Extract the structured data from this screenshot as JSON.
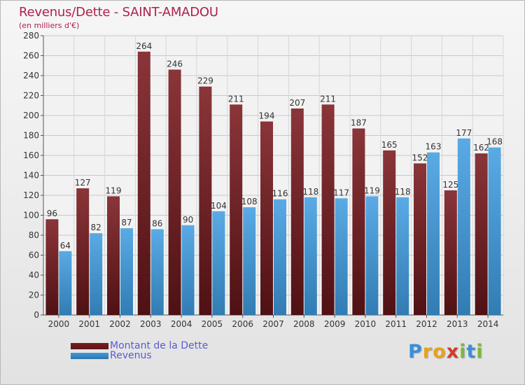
{
  "chart_data": {
    "type": "bar",
    "title": "Revenus/Dette - SAINT-AMADOU",
    "subtitle": "(en milliers d'€)",
    "categories": [
      "2000",
      "2001",
      "2002",
      "2003",
      "2004",
      "2005",
      "2006",
      "2007",
      "2008",
      "2009",
      "2010",
      "2011",
      "2012",
      "2013",
      "2014"
    ],
    "series": [
      {
        "name": "Montant de la Dette",
        "color": "#7a1a1e",
        "values": [
          96,
          127,
          119,
          264,
          246,
          229,
          211,
          194,
          207,
          211,
          187,
          165,
          152,
          125,
          162
        ]
      },
      {
        "name": "Revenus",
        "color": "#3d9be0",
        "values": [
          64,
          82,
          87,
          86,
          90,
          104,
          108,
          116,
          118,
          117,
          119,
          118,
          163,
          177,
          168
        ]
      }
    ],
    "yticks": [
      0,
      20,
      40,
      60,
      80,
      100,
      120,
      140,
      160,
      180,
      200,
      220,
      240,
      260,
      280
    ],
    "ylim": [
      0,
      280
    ],
    "grid": true,
    "legend_position": "bottom-left"
  },
  "legend": {
    "items": [
      {
        "label": "Montant de la Dette",
        "color": "#7a1a1e"
      },
      {
        "label": "Revenus",
        "color": "#3d9be0"
      }
    ]
  },
  "logo": {
    "letters": [
      "P",
      "r",
      "o",
      "x",
      "i",
      "t",
      "i"
    ],
    "colors": [
      "#3a8fd8",
      "#e8a21a",
      "#e8a21a",
      "#d43a2a",
      "#7ab83a",
      "#3a8fd8",
      "#7ab83a"
    ]
  }
}
